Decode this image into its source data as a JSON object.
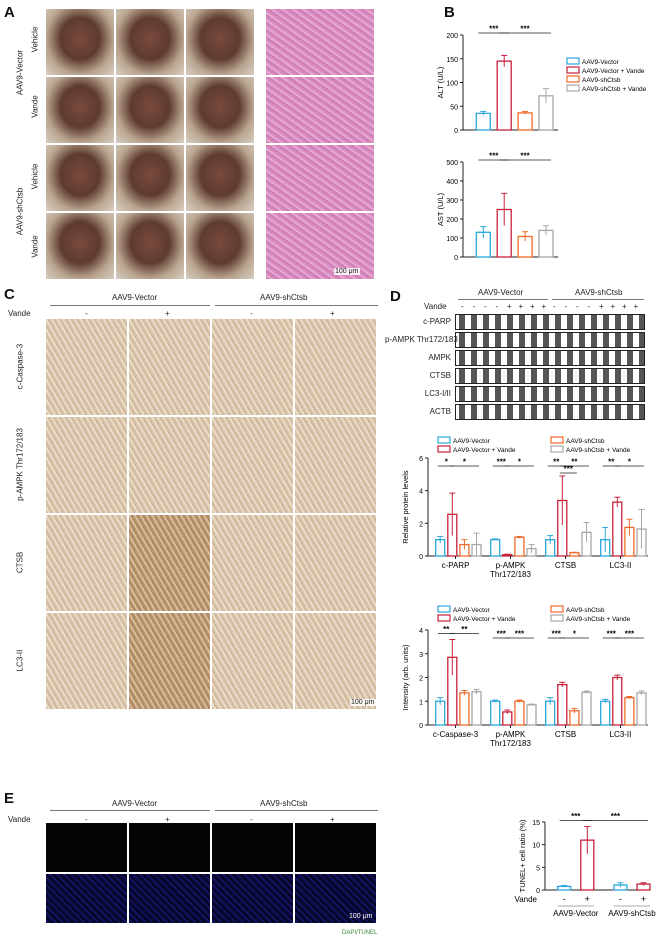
{
  "panels": {
    "a": "A",
    "b": "B",
    "c": "C",
    "d": "D",
    "e": "E"
  },
  "groups": {
    "vector": "AAV9-Vector",
    "sh": "AAV9-shCtsb",
    "vehicle": "Vehicle",
    "vande": "Vande",
    "minus": "-",
    "plus": "+"
  },
  "scale_bar": "100 μm",
  "panel_c_rows": [
    "c-Caspase-3",
    "p-AMPK Thr172/183",
    "CTSB",
    "LC3-II"
  ],
  "blot": {
    "vande_label": "Vande",
    "signs": [
      "-",
      "-",
      "-",
      "-",
      "+",
      "+",
      "+",
      "+",
      "-",
      "-",
      "-",
      "-",
      "+",
      "+",
      "+",
      "+"
    ],
    "rows": [
      "c-PARP",
      "p-AMPK Thr172/183",
      "AMPK",
      "CTSB",
      "LC3-I/II",
      "ACTB"
    ]
  },
  "panel_e_caption": "DAPI/TUNEL",
  "legend": [
    "AAV9-Vector",
    "AAV9-Vector + Vande",
    "AAV9-shCtsb",
    "AAV9-shCtsb + Vande"
  ],
  "colors": {
    "vector": "#2aa7dc",
    "vector_vande": "#c8203a",
    "sh": "#f06a2a",
    "sh_vande": "#a8a8a8"
  },
  "chart_data": [
    {
      "type": "bar",
      "ylabel": "ALT (U/L)",
      "ylim": [
        0,
        200
      ],
      "yticks": [
        0,
        50,
        100,
        150,
        200
      ],
      "categories": [
        ""
      ],
      "series": [
        {
          "name": "AAV9-Vector",
          "values": [
            35
          ],
          "sd": [
            4
          ]
        },
        {
          "name": "AAV9-Vector + Vande",
          "values": [
            145
          ],
          "sd": [
            12
          ]
        },
        {
          "name": "AAV9-shCtsb",
          "values": [
            36
          ],
          "sd": [
            3
          ]
        },
        {
          "name": "AAV9-shCtsb + Vande",
          "values": [
            72
          ],
          "sd": [
            15
          ]
        }
      ],
      "significance": [
        [
          0,
          0,
          1,
          "***"
        ],
        [
          0,
          1,
          3,
          "***"
        ]
      ],
      "legend": "right"
    },
    {
      "type": "bar",
      "ylabel": "AST (U/L)",
      "ylim": [
        0,
        500
      ],
      "yticks": [
        0,
        100,
        200,
        300,
        400,
        500
      ],
      "categories": [
        ""
      ],
      "series": [
        {
          "name": "AAV9-Vector",
          "values": [
            130
          ],
          "sd": [
            30
          ]
        },
        {
          "name": "AAV9-Vector + Vande",
          "values": [
            250
          ],
          "sd": [
            85
          ]
        },
        {
          "name": "AAV9-shCtsb",
          "values": [
            108
          ],
          "sd": [
            25
          ]
        },
        {
          "name": "AAV9-shCtsb + Vande",
          "values": [
            140
          ],
          "sd": [
            25
          ]
        }
      ],
      "significance": [
        [
          0,
          0,
          1,
          "***"
        ],
        [
          0,
          1,
          3,
          "***"
        ]
      ]
    },
    {
      "type": "bar",
      "ylabel": "Relative protein levels",
      "ylim": [
        0,
        6
      ],
      "yticks": [
        0,
        2,
        4,
        6
      ],
      "categories": [
        "c-PARP",
        "p-AMPK\nThr172/183",
        "CTSB",
        "LC3-II"
      ],
      "series": [
        {
          "name": "AAV9-Vector",
          "values": [
            1.0,
            1.0,
            1.0,
            1.0
          ],
          "sd": [
            0.2,
            0.05,
            0.25,
            0.75
          ]
        },
        {
          "name": "AAV9-Vector + Vande",
          "values": [
            2.55,
            0.08,
            3.4,
            3.3
          ],
          "sd": [
            1.3,
            0.03,
            1.5,
            0.3
          ]
        },
        {
          "name": "AAV9-shCtsb",
          "values": [
            0.7,
            1.15,
            0.2,
            1.75
          ],
          "sd": [
            0.3,
            0.05,
            0.03,
            0.5
          ]
        },
        {
          "name": "AAV9-shCtsb + Vande",
          "values": [
            0.7,
            0.45,
            1.45,
            1.65
          ],
          "sd": [
            0.7,
            0.25,
            0.6,
            1.2
          ]
        }
      ],
      "significance": [
        [
          0,
          0,
          1,
          "*"
        ],
        [
          0,
          1,
          3,
          "*"
        ],
        [
          1,
          0,
          1,
          "***"
        ],
        [
          1,
          1,
          3,
          "*"
        ],
        [
          2,
          0,
          1,
          "**"
        ],
        [
          2,
          1,
          3,
          "**"
        ],
        [
          2,
          1,
          2,
          "***"
        ],
        [
          3,
          0,
          1,
          "**"
        ],
        [
          3,
          1,
          3,
          "*"
        ]
      ],
      "legend": "top"
    },
    {
      "type": "bar",
      "ylabel": "Intensity (arb. units)",
      "ylim": [
        0,
        4
      ],
      "yticks": [
        0,
        1,
        2,
        3,
        4
      ],
      "categories": [
        "c-Caspase-3",
        "p-AMPK\nThr172/183",
        "CTSB",
        "LC3-II"
      ],
      "series": [
        {
          "name": "AAV9-Vector",
          "values": [
            1.0,
            1.0,
            1.0,
            1.0
          ],
          "sd": [
            0.15,
            0.05,
            0.15,
            0.08
          ]
        },
        {
          "name": "AAV9-Vector + Vande",
          "values": [
            2.85,
            0.55,
            1.7,
            2.0
          ],
          "sd": [
            0.75,
            0.08,
            0.1,
            0.1
          ]
        },
        {
          "name": "AAV9-shCtsb",
          "values": [
            1.35,
            1.0,
            0.6,
            1.15
          ],
          "sd": [
            0.1,
            0.05,
            0.1,
            0.05
          ]
        },
        {
          "name": "AAV9-shCtsb + Vande",
          "values": [
            1.4,
            0.85,
            1.38,
            1.35
          ],
          "sd": [
            0.1,
            0.03,
            0.05,
            0.08
          ]
        }
      ],
      "significance": [
        [
          0,
          0,
          1,
          "**"
        ],
        [
          0,
          1,
          3,
          "**"
        ],
        [
          1,
          0,
          1,
          "***"
        ],
        [
          1,
          1,
          3,
          "***"
        ],
        [
          2,
          0,
          1,
          "***"
        ],
        [
          2,
          1,
          3,
          "*"
        ],
        [
          3,
          0,
          1,
          "***"
        ],
        [
          3,
          1,
          3,
          "***"
        ]
      ],
      "legend": "top"
    },
    {
      "type": "bar",
      "ylabel": "TUNEL+ cell ratio (%)",
      "ylim": [
        0,
        15
      ],
      "yticks": [
        0,
        5,
        10,
        15
      ],
      "categories": [
        ""
      ],
      "xlabels": {
        "vande": "Vande",
        "signs": [
          "-",
          "+",
          "-",
          "+"
        ],
        "groups": [
          "AAV9-Vector",
          "AAV9-shCtsb"
        ]
      },
      "series": [
        {
          "name": "AAV9-Vector -",
          "values": [
            0.8
          ],
          "sd": [
            0.2
          ]
        },
        {
          "name": "AAV9-Vector +",
          "values": [
            11
          ],
          "sd": [
            3
          ]
        },
        {
          "name": "AAV9-shCtsb -",
          "values": [
            1.1
          ],
          "sd": [
            0.5
          ]
        },
        {
          "name": "AAV9-shCtsb +",
          "values": [
            1.3
          ],
          "sd": [
            0.3
          ]
        }
      ],
      "significance": [
        [
          0,
          0,
          1,
          "***"
        ],
        [
          0,
          1,
          3,
          "***"
        ]
      ]
    }
  ]
}
